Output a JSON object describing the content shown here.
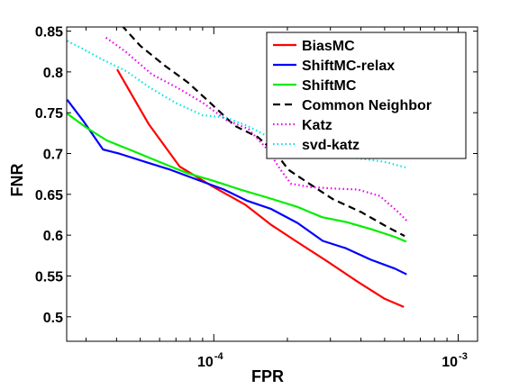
{
  "chart_data": {
    "type": "line",
    "xscale": "log",
    "xlabel": "FPR",
    "ylabel": "FNR",
    "xlim": [
      2.5e-05,
      0.0012
    ],
    "ylim": [
      0.47,
      0.855
    ],
    "xticks": [
      {
        "value": 0.0001,
        "base": "10",
        "exp": "-4"
      },
      {
        "value": 0.001,
        "base": "10",
        "exp": "-3"
      }
    ],
    "yticks": [
      {
        "value": 0.5,
        "label": "0.5"
      },
      {
        "value": 0.55,
        "label": "0.55"
      },
      {
        "value": 0.6,
        "label": "0.6"
      },
      {
        "value": 0.65,
        "label": "0.65"
      },
      {
        "value": 0.7,
        "label": "0.7"
      },
      {
        "value": 0.75,
        "label": "0.75"
      },
      {
        "value": 0.8,
        "label": "0.8"
      },
      {
        "value": 0.85,
        "label": "0.85"
      }
    ],
    "legend_position": "top-right",
    "series": [
      {
        "name": "BiasMC",
        "color": "#ff0000",
        "dash": "solid",
        "points": [
          [
            4.02e-05,
            0.803
          ],
          [
            5.42e-05,
            0.736
          ],
          [
            7.25e-05,
            0.684
          ],
          [
            9.85e-05,
            0.66
          ],
          [
            0.000135,
            0.637
          ],
          [
            0.000171,
            0.613
          ],
          [
            0.000216,
            0.593
          ],
          [
            0.000291,
            0.568
          ],
          [
            0.000392,
            0.542
          ],
          [
            0.000501,
            0.522
          ],
          [
            0.000599,
            0.512
          ]
        ]
      },
      {
        "name": "ShiftMC-relax",
        "color": "#0000ff",
        "dash": "solid",
        "points": [
          [
            2.51e-05,
            0.766
          ],
          [
            2.94e-05,
            0.739
          ],
          [
            3.52e-05,
            0.705
          ],
          [
            4.09e-05,
            0.7
          ],
          [
            5.21e-05,
            0.69
          ],
          [
            6.66e-05,
            0.68
          ],
          [
            8.54e-05,
            0.668
          ],
          [
            0.0001098,
            0.656
          ],
          [
            0.0001373,
            0.642
          ],
          [
            0.0001718,
            0.632
          ],
          [
            0.0002201,
            0.615
          ],
          [
            0.0002791,
            0.593
          ],
          [
            0.0003472,
            0.584
          ],
          [
            0.0004389,
            0.57
          ],
          [
            0.000551,
            0.559
          ],
          [
            0.000615,
            0.552
          ]
        ]
      },
      {
        "name": "ShiftMC",
        "color": "#00ee00",
        "dash": "solid",
        "points": [
          [
            2.51e-05,
            0.749
          ],
          [
            3e-05,
            0.732
          ],
          [
            3.65e-05,
            0.716
          ],
          [
            4.59e-05,
            0.704
          ],
          [
            5.97e-05,
            0.69
          ],
          [
            7.79e-05,
            0.676
          ],
          [
            9.86e-05,
            0.667
          ],
          [
            0.0001279,
            0.656
          ],
          [
            0.0001662,
            0.646
          ],
          [
            0.0002181,
            0.635
          ],
          [
            0.0002774,
            0.622
          ],
          [
            0.0003495,
            0.616
          ],
          [
            0.0004439,
            0.607
          ],
          [
            0.000549,
            0.598
          ],
          [
            0.000613,
            0.592
          ]
        ]
      },
      {
        "name": "Common Neighbor",
        "color": "#000000",
        "dash": "dashed",
        "points": [
          [
            4.2e-05,
            0.857
          ],
          [
            5e-05,
            0.832
          ],
          [
            6.28e-05,
            0.808
          ],
          [
            7.84e-05,
            0.787
          ],
          [
            9.76e-05,
            0.761
          ],
          [
            0.0001218,
            0.734
          ],
          [
            0.0001517,
            0.72
          ],
          [
            0.00018,
            0.7
          ],
          [
            0.0002022,
            0.68
          ],
          [
            0.000243,
            0.664
          ],
          [
            0.0003076,
            0.644
          ],
          [
            0.0004028,
            0.628
          ],
          [
            0.000513,
            0.61
          ],
          [
            0.000604,
            0.599
          ]
        ]
      },
      {
        "name": "Katz",
        "color": "#ee00ee",
        "dash": "dotted",
        "points": [
          [
            3.62e-05,
            0.842
          ],
          [
            4.35e-05,
            0.825
          ],
          [
            5.58e-05,
            0.797
          ],
          [
            7.15e-05,
            0.78
          ],
          [
            9.03e-05,
            0.762
          ],
          [
            0.0001126,
            0.741
          ],
          [
            0.0001387,
            0.73
          ],
          [
            0.0001658,
            0.705
          ],
          [
            0.0001866,
            0.681
          ],
          [
            0.0002067,
            0.663
          ],
          [
            0.0002471,
            0.659
          ],
          [
            0.000316,
            0.657
          ],
          [
            0.0003874,
            0.656
          ],
          [
            0.0004778,
            0.648
          ],
          [
            0.000565,
            0.629
          ],
          [
            0.000619,
            0.617
          ]
        ]
      },
      {
        "name": "svd-katz",
        "color": "#00e6e6",
        "dash": "dotted",
        "points": [
          [
            2.51e-05,
            0.838
          ],
          [
            2.84e-05,
            0.83
          ],
          [
            3.51e-05,
            0.815
          ],
          [
            4.38e-05,
            0.801
          ],
          [
            5.52e-05,
            0.78
          ],
          [
            6.99e-05,
            0.762
          ],
          [
            8.97e-05,
            0.747
          ],
          [
            0.0001121,
            0.744
          ],
          [
            0.000137,
            0.734
          ],
          [
            0.0001661,
            0.721
          ],
          [
            0.0002006,
            0.71
          ],
          [
            0.0002458,
            0.704
          ],
          [
            0.0003118,
            0.698
          ],
          [
            0.0003951,
            0.694
          ],
          [
            0.000497,
            0.69
          ],
          [
            0.000609,
            0.683
          ]
        ]
      }
    ]
  }
}
